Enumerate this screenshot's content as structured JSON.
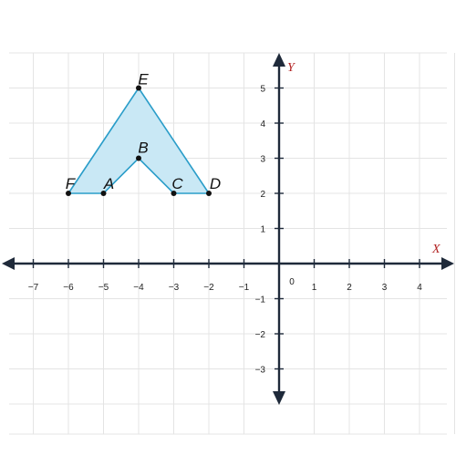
{
  "chart_data": {
    "type": "scatter",
    "title": "",
    "xlabel": "X",
    "ylabel": "Y",
    "xlim": [
      -8,
      5
    ],
    "ylim": [
      -4,
      6
    ],
    "grid": true,
    "origin_label": "0",
    "x_ticks": [
      {
        "v": -7,
        "t": "−7"
      },
      {
        "v": -6,
        "t": "−6"
      },
      {
        "v": -5,
        "t": "−5"
      },
      {
        "v": -4,
        "t": "−4"
      },
      {
        "v": -3,
        "t": "−3"
      },
      {
        "v": -2,
        "t": "−2"
      },
      {
        "v": -1,
        "t": "−1"
      },
      {
        "v": 1,
        "t": "1"
      },
      {
        "v": 2,
        "t": "2"
      },
      {
        "v": 3,
        "t": "3"
      },
      {
        "v": 4,
        "t": "4"
      }
    ],
    "y_ticks": [
      {
        "v": 5,
        "t": "5"
      },
      {
        "v": 4,
        "t": "4"
      },
      {
        "v": 3,
        "t": "3"
      },
      {
        "v": 2,
        "t": "2"
      },
      {
        "v": 1,
        "t": "1"
      },
      {
        "v": -1,
        "t": "−1"
      },
      {
        "v": -2,
        "t": "−2"
      },
      {
        "v": -3,
        "t": "−3"
      }
    ],
    "polygon": {
      "fill": "#c9e8f5",
      "stroke": "#2a9dc9",
      "order": [
        "F",
        "E",
        "D",
        "C",
        "B",
        "A"
      ],
      "points": [
        {
          "label": "E",
          "x": -4,
          "y": 5
        },
        {
          "label": "B",
          "x": -4,
          "y": 3
        },
        {
          "label": "F",
          "x": -6,
          "y": 2
        },
        {
          "label": "A",
          "x": -5,
          "y": 2
        },
        {
          "label": "C",
          "x": -3,
          "y": 2
        },
        {
          "label": "D",
          "x": -2,
          "y": 2
        }
      ]
    },
    "colors": {
      "axis": "#1f2a3a",
      "grid": "#e4e4e4",
      "axis_title": "#b22222",
      "point": "#111111"
    }
  }
}
